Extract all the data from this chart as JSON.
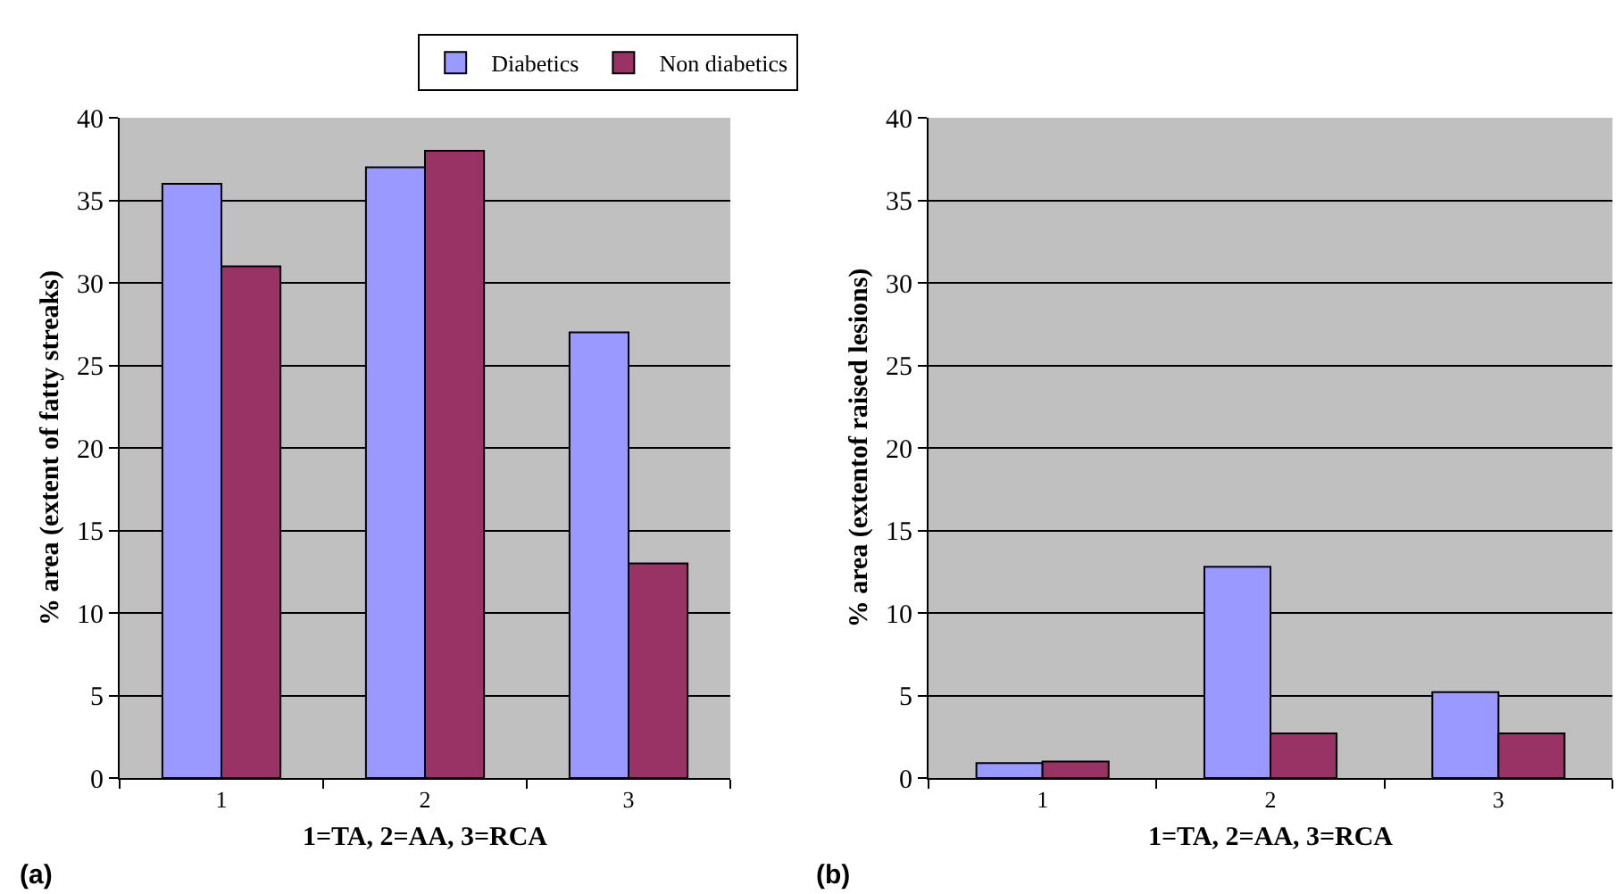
{
  "chart_data": [
    {
      "type": "bar",
      "categories": [
        "1",
        "2",
        "3"
      ],
      "series": [
        {
          "name": "Diabetics",
          "color": "#9999ff",
          "values": [
            36,
            37,
            27
          ]
        },
        {
          "name": "Non diabetics",
          "color": "#993366",
          "values": [
            31,
            38,
            13
          ]
        }
      ],
      "ylabel": "% area (extent of fatty streaks)",
      "xlabel": "1=TA, 2=AA, 3=RCA",
      "ylim": [
        0,
        40
      ],
      "yticks": [
        0,
        5,
        10,
        15,
        20,
        25,
        30,
        35,
        40
      ],
      "grid": "y",
      "legend": "top",
      "annotations": [
        "(a)"
      ]
    },
    {
      "type": "bar",
      "categories": [
        "1",
        "2",
        "3"
      ],
      "series": [
        {
          "color": "#9999ff",
          "values": [
            0.9,
            12.8,
            5.2
          ]
        },
        {
          "color": "#993366",
          "values": [
            1.0,
            2.7,
            2.7
          ]
        }
      ],
      "ylabel": "% area (extentof raised lesions)",
      "xlabel": "1=TA, 2=AA, 3=RCA",
      "ylim": [
        0,
        40
      ],
      "yticks": [
        0,
        5,
        10,
        15,
        20,
        25,
        30,
        35,
        40
      ],
      "grid": "y",
      "annotations": [
        "(b)"
      ]
    }
  ]
}
